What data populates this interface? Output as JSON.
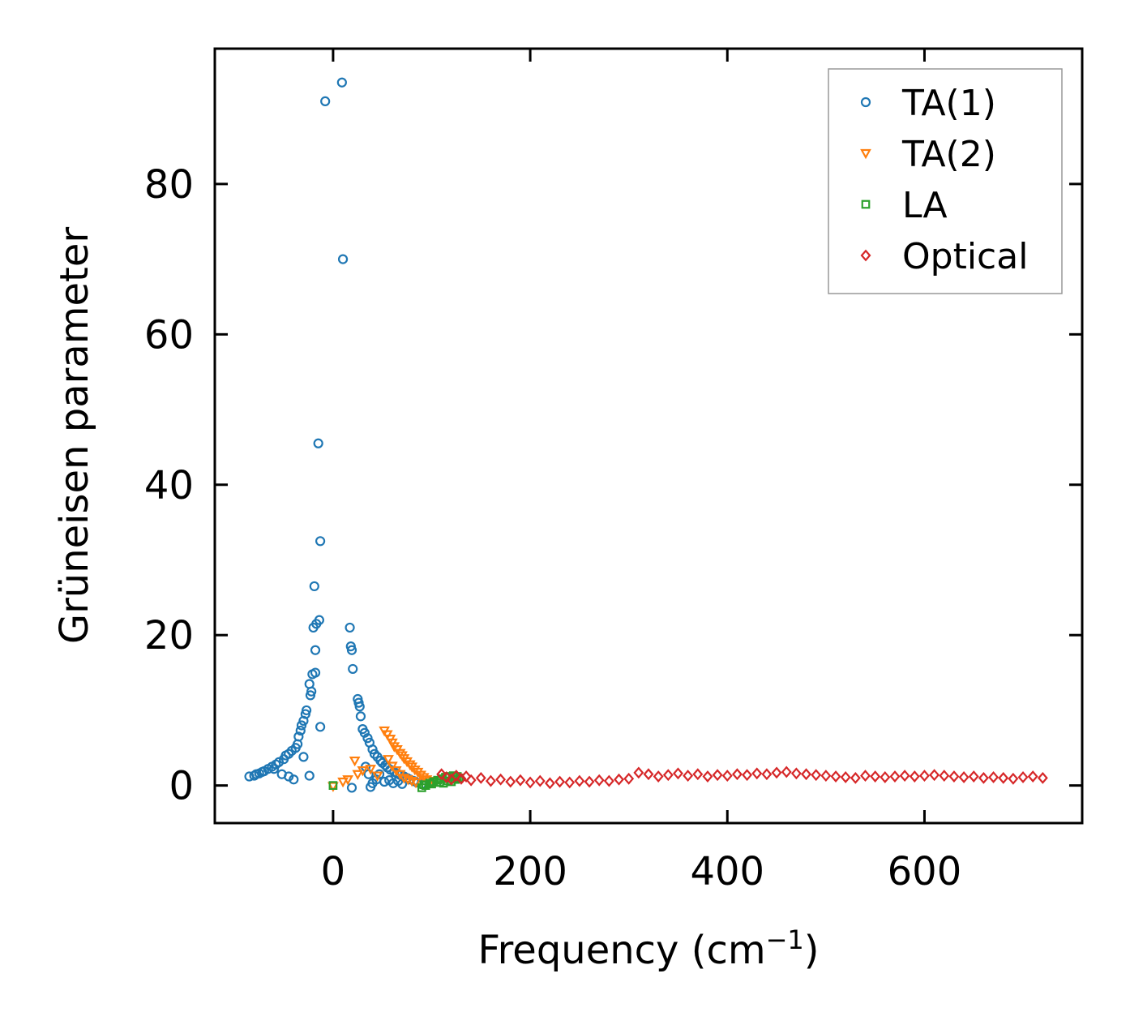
{
  "chart_data": {
    "type": "scatter",
    "title": "",
    "xlabel": "Frequency (cm",
    "xlabel_sup": "−1",
    "xlabel_close": ")",
    "ylabel": "Grüneisen parameter",
    "xlim": [
      -120,
      760
    ],
    "ylim": [
      -5,
      98
    ],
    "xticks": [
      0,
      200,
      400,
      600
    ],
    "yticks": [
      0,
      20,
      40,
      60,
      80
    ],
    "legend_position": "top-right",
    "series": [
      {
        "name": "TA(1)",
        "marker": "circle",
        "color": "#1f77b4",
        "points": [
          [
            -8,
            91
          ],
          [
            9,
            93.5
          ],
          [
            10,
            70
          ],
          [
            -15,
            45.5
          ],
          [
            -13,
            32.5
          ],
          [
            -19,
            26.5
          ],
          [
            -14,
            22
          ],
          [
            -17,
            21.5
          ],
          [
            -20,
            21
          ],
          [
            17,
            21
          ],
          [
            18,
            18.5
          ],
          [
            19,
            18
          ],
          [
            -18,
            18
          ],
          [
            20,
            15.5
          ],
          [
            -18,
            15
          ],
          [
            -21,
            14.8
          ],
          [
            -24,
            13.5
          ],
          [
            -22,
            12.5
          ],
          [
            -23,
            12
          ],
          [
            25,
            11.5
          ],
          [
            26,
            11
          ],
          [
            27,
            10.5
          ],
          [
            -27,
            10
          ],
          [
            -28,
            9.5
          ],
          [
            -30,
            8.6
          ],
          [
            -32,
            8
          ],
          [
            28,
            9.2
          ],
          [
            -13,
            7.8
          ],
          [
            30,
            7.5
          ],
          [
            32,
            7
          ],
          [
            35,
            6.3
          ],
          [
            37,
            5.7
          ],
          [
            -33,
            7.3
          ],
          [
            -35,
            6.5
          ],
          [
            -36,
            5.5
          ],
          [
            -38,
            5
          ],
          [
            -42,
            4.6
          ],
          [
            -45,
            4.2
          ],
          [
            -48,
            4
          ],
          [
            -50,
            3.5
          ],
          [
            -55,
            3.1
          ],
          [
            -58,
            2.8
          ],
          [
            -62,
            2.5
          ],
          [
            -66,
            2.2
          ],
          [
            -70,
            1.9
          ],
          [
            -75,
            1.6
          ],
          [
            -80,
            1.3
          ],
          [
            -85,
            1.2
          ],
          [
            -78,
            1.5
          ],
          [
            -72,
            1.8
          ],
          [
            -60,
            2.2
          ],
          [
            -52,
            1.5
          ],
          [
            -45,
            1.2
          ],
          [
            -40,
            0.8
          ],
          [
            -30,
            3.8
          ],
          [
            -24,
            1.3
          ],
          [
            40,
            4.8
          ],
          [
            42,
            4.2
          ],
          [
            45,
            3.8
          ],
          [
            48,
            3.3
          ],
          [
            50,
            3
          ],
          [
            53,
            2.7
          ],
          [
            55,
            2.4
          ],
          [
            58,
            2.1
          ],
          [
            62,
            1.8
          ],
          [
            65,
            1.6
          ],
          [
            68,
            1.4
          ],
          [
            72,
            1.2
          ],
          [
            75,
            1
          ],
          [
            78,
            0.8
          ],
          [
            82,
            0.6
          ],
          [
            85,
            0.4
          ],
          [
            90,
            0.2
          ],
          [
            33,
            2.5
          ],
          [
            36,
            1.5
          ],
          [
            40,
            0.3
          ],
          [
            38,
            -0.2
          ],
          [
            19,
            -0.3
          ],
          [
            44,
            0.8
          ],
          [
            47,
            1.5
          ],
          [
            52,
            0.5
          ],
          [
            57,
            0.7
          ],
          [
            61,
            0.3
          ],
          [
            66,
            0.6
          ],
          [
            70,
            0.2
          ]
        ]
      },
      {
        "name": "TA(2)",
        "marker": "triangle-down",
        "color": "#ff7f0e",
        "points": [
          [
            0,
            -0.1
          ],
          [
            10,
            0.5
          ],
          [
            15,
            0.8
          ],
          [
            22,
            3.3
          ],
          [
            25,
            1.5
          ],
          [
            30,
            2
          ],
          [
            38,
            2.2
          ],
          [
            45,
            1.3
          ],
          [
            52,
            7.3
          ],
          [
            55,
            6.8
          ],
          [
            58,
            6.2
          ],
          [
            60,
            5.7
          ],
          [
            62,
            5.2
          ],
          [
            65,
            4.8
          ],
          [
            68,
            4.3
          ],
          [
            70,
            4
          ],
          [
            72,
            3.6
          ],
          [
            75,
            3.2
          ],
          [
            78,
            2.8
          ],
          [
            80,
            2.5
          ],
          [
            83,
            2.1
          ],
          [
            86,
            1.8
          ],
          [
            89,
            1.4
          ],
          [
            92,
            1.1
          ],
          [
            95,
            0.8
          ],
          [
            98,
            0.6
          ],
          [
            102,
            0.5
          ],
          [
            56,
            3.5
          ],
          [
            60,
            2.6
          ],
          [
            64,
            2
          ],
          [
            68,
            1.5
          ],
          [
            72,
            1
          ],
          [
            76,
            0.8
          ],
          [
            80,
            0.6
          ],
          [
            84,
            0.4
          ]
        ]
      },
      {
        "name": "LA",
        "marker": "square",
        "color": "#2ca02c",
        "points": [
          [
            0,
            0
          ],
          [
            90,
            -0.3
          ],
          [
            94,
            0
          ],
          [
            98,
            0.3
          ],
          [
            102,
            0.5
          ],
          [
            106,
            0.7
          ],
          [
            110,
            0.9
          ],
          [
            114,
            1.1
          ],
          [
            118,
            1.2
          ],
          [
            122,
            1.3
          ],
          [
            126,
            1.2
          ],
          [
            100,
            0.2
          ],
          [
            108,
            0.4
          ],
          [
            116,
            0.6
          ],
          [
            124,
            0.8
          ],
          [
            92,
            0.1
          ],
          [
            112,
            0.3
          ],
          [
            120,
            0.5
          ],
          [
            128,
            1
          ]
        ]
      },
      {
        "name": "Optical",
        "marker": "diamond",
        "color": "#d62728",
        "points": [
          [
            110,
            1.5
          ],
          [
            115,
            1.1
          ],
          [
            120,
            0.8
          ],
          [
            125,
            1.3
          ],
          [
            130,
            0.9
          ],
          [
            135,
            1.2
          ],
          [
            140,
            0.7
          ],
          [
            150,
            1.0
          ],
          [
            160,
            0.6
          ],
          [
            170,
            0.8
          ],
          [
            180,
            0.5
          ],
          [
            190,
            0.7
          ],
          [
            200,
            0.4
          ],
          [
            210,
            0.6
          ],
          [
            220,
            0.3
          ],
          [
            230,
            0.5
          ],
          [
            240,
            0.4
          ],
          [
            250,
            0.6
          ],
          [
            260,
            0.5
          ],
          [
            270,
            0.7
          ],
          [
            280,
            0.6
          ],
          [
            290,
            0.8
          ],
          [
            300,
            0.9
          ],
          [
            310,
            1.7
          ],
          [
            320,
            1.5
          ],
          [
            330,
            1.2
          ],
          [
            340,
            1.4
          ],
          [
            350,
            1.6
          ],
          [
            360,
            1.3
          ],
          [
            370,
            1.5
          ],
          [
            380,
            1.2
          ],
          [
            390,
            1.4
          ],
          [
            400,
            1.3
          ],
          [
            410,
            1.5
          ],
          [
            420,
            1.4
          ],
          [
            430,
            1.6
          ],
          [
            440,
            1.5
          ],
          [
            450,
            1.7
          ],
          [
            460,
            1.8
          ],
          [
            470,
            1.6
          ],
          [
            480,
            1.5
          ],
          [
            490,
            1.4
          ],
          [
            500,
            1.3
          ],
          [
            510,
            1.2
          ],
          [
            520,
            1.1
          ],
          [
            530,
            1.0
          ],
          [
            540,
            1.3
          ],
          [
            550,
            1.2
          ],
          [
            560,
            1.1
          ],
          [
            570,
            1.2
          ],
          [
            580,
            1.3
          ],
          [
            590,
            1.2
          ],
          [
            600,
            1.3
          ],
          [
            610,
            1.4
          ],
          [
            620,
            1.3
          ],
          [
            630,
            1.2
          ],
          [
            640,
            1.1
          ],
          [
            650,
            1.2
          ],
          [
            660,
            1.0
          ],
          [
            670,
            1.1
          ],
          [
            680,
            1.0
          ],
          [
            690,
            0.9
          ],
          [
            700,
            1.1
          ],
          [
            710,
            1.2
          ],
          [
            720,
            1.0
          ]
        ]
      }
    ]
  }
}
